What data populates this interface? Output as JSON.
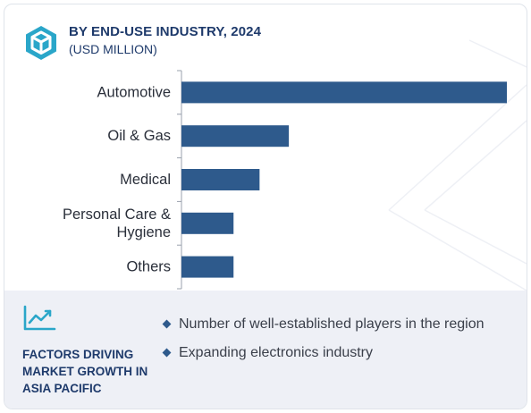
{
  "header": {
    "title": "BY END-USE INDUSTRY, 2024",
    "subtitle": "(USD MILLION)"
  },
  "chart_data": {
    "type": "bar",
    "orientation": "horizontal",
    "title": "BY END-USE INDUSTRY, 2024",
    "subtitle": "(USD MILLION)",
    "categories": [
      [
        "Automotive"
      ],
      [
        "Oil & Gas"
      ],
      [
        "Medical"
      ],
      [
        "Personal Care &",
        "Hygiene"
      ],
      [
        "Others"
      ]
    ],
    "values": [
      100,
      33,
      24,
      16,
      16
    ],
    "xlim": [
      0,
      100
    ],
    "bar_color": "#2e5a8c",
    "grid": false
  },
  "factors": {
    "label_lines": [
      "FACTORS DRIVING",
      "MARKET GROWTH IN",
      "ASIA PACIFIC"
    ],
    "items": [
      "Number of well-established players in the region",
      "Expanding electronics industry"
    ]
  },
  "colors": {
    "accent": "#2e5a8c",
    "heading": "#1e3a6b",
    "panel": "#eef0f6"
  }
}
